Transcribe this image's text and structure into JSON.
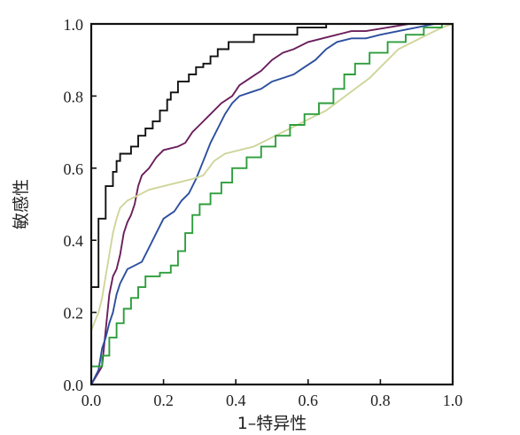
{
  "chart_data": {
    "type": "line",
    "title": "",
    "xlabel": "1–特异性",
    "ylabel": "敏感性",
    "xlim": [
      0,
      1
    ],
    "ylim": [
      0,
      1
    ],
    "xticks": [
      "0.0",
      "0.2",
      "0.4",
      "0.6",
      "0.8",
      "1.0"
    ],
    "yticks": [
      "0.0",
      "0.2",
      "0.4",
      "0.6",
      "0.8",
      "1.0"
    ],
    "grid": false,
    "legend": "none",
    "series": [
      {
        "color": "#111111",
        "points": [
          [
            0,
            0
          ],
          [
            0,
            0.27
          ],
          [
            0.02,
            0.27
          ],
          [
            0.02,
            0.46
          ],
          [
            0.04,
            0.46
          ],
          [
            0.04,
            0.55
          ],
          [
            0.06,
            0.55
          ],
          [
            0.06,
            0.59
          ],
          [
            0.07,
            0.59
          ],
          [
            0.07,
            0.62
          ],
          [
            0.08,
            0.62
          ],
          [
            0.08,
            0.64
          ],
          [
            0.11,
            0.64
          ],
          [
            0.11,
            0.66
          ],
          [
            0.13,
            0.66
          ],
          [
            0.13,
            0.69
          ],
          [
            0.15,
            0.69
          ],
          [
            0.15,
            0.71
          ],
          [
            0.17,
            0.71
          ],
          [
            0.17,
            0.73
          ],
          [
            0.19,
            0.73
          ],
          [
            0.19,
            0.76
          ],
          [
            0.21,
            0.76
          ],
          [
            0.21,
            0.79
          ],
          [
            0.22,
            0.79
          ],
          [
            0.22,
            0.81
          ],
          [
            0.24,
            0.81
          ],
          [
            0.24,
            0.84
          ],
          [
            0.27,
            0.84
          ],
          [
            0.27,
            0.86
          ],
          [
            0.29,
            0.86
          ],
          [
            0.29,
            0.88
          ],
          [
            0.31,
            0.88
          ],
          [
            0.31,
            0.89
          ],
          [
            0.33,
            0.89
          ],
          [
            0.33,
            0.91
          ],
          [
            0.35,
            0.91
          ],
          [
            0.35,
            0.93
          ],
          [
            0.38,
            0.93
          ],
          [
            0.38,
            0.95
          ],
          [
            0.45,
            0.95
          ],
          [
            0.45,
            0.97
          ],
          [
            0.57,
            0.97
          ],
          [
            0.57,
            0.99
          ],
          [
            0.65,
            0.99
          ],
          [
            0.65,
            1.0
          ],
          [
            1.0,
            1.0
          ]
        ]
      },
      {
        "color": "#6a1f5c",
        "points": [
          [
            0,
            0
          ],
          [
            0.03,
            0.05
          ],
          [
            0.04,
            0.15
          ],
          [
            0.05,
            0.25
          ],
          [
            0.06,
            0.3
          ],
          [
            0.07,
            0.32
          ],
          [
            0.08,
            0.36
          ],
          [
            0.09,
            0.42
          ],
          [
            0.1,
            0.45
          ],
          [
            0.11,
            0.47
          ],
          [
            0.12,
            0.5
          ],
          [
            0.13,
            0.55
          ],
          [
            0.14,
            0.58
          ],
          [
            0.16,
            0.6
          ],
          [
            0.18,
            0.63
          ],
          [
            0.2,
            0.65
          ],
          [
            0.24,
            0.66
          ],
          [
            0.26,
            0.67
          ],
          [
            0.28,
            0.7
          ],
          [
            0.3,
            0.72
          ],
          [
            0.33,
            0.75
          ],
          [
            0.36,
            0.78
          ],
          [
            0.39,
            0.8
          ],
          [
            0.41,
            0.83
          ],
          [
            0.44,
            0.85
          ],
          [
            0.47,
            0.87
          ],
          [
            0.5,
            0.9
          ],
          [
            0.53,
            0.92
          ],
          [
            0.56,
            0.93
          ],
          [
            0.6,
            0.95
          ],
          [
            0.64,
            0.96
          ],
          [
            0.68,
            0.97
          ],
          [
            0.72,
            0.98
          ],
          [
            0.76,
            0.98
          ],
          [
            0.82,
            0.99
          ],
          [
            0.88,
            1.0
          ],
          [
            1.0,
            1.0
          ]
        ]
      },
      {
        "color": "#2c4f9e",
        "points": [
          [
            0,
            0
          ],
          [
            0.02,
            0.04
          ],
          [
            0.03,
            0.1
          ],
          [
            0.04,
            0.13
          ],
          [
            0.05,
            0.17
          ],
          [
            0.06,
            0.2
          ],
          [
            0.07,
            0.25
          ],
          [
            0.08,
            0.28
          ],
          [
            0.09,
            0.3
          ],
          [
            0.1,
            0.32
          ],
          [
            0.12,
            0.33
          ],
          [
            0.14,
            0.34
          ],
          [
            0.16,
            0.38
          ],
          [
            0.18,
            0.42
          ],
          [
            0.2,
            0.46
          ],
          [
            0.23,
            0.48
          ],
          [
            0.25,
            0.51
          ],
          [
            0.27,
            0.53
          ],
          [
            0.29,
            0.57
          ],
          [
            0.31,
            0.62
          ],
          [
            0.33,
            0.67
          ],
          [
            0.35,
            0.71
          ],
          [
            0.37,
            0.75
          ],
          [
            0.39,
            0.78
          ],
          [
            0.41,
            0.8
          ],
          [
            0.44,
            0.81
          ],
          [
            0.47,
            0.82
          ],
          [
            0.5,
            0.84
          ],
          [
            0.53,
            0.85
          ],
          [
            0.56,
            0.86
          ],
          [
            0.59,
            0.88
          ],
          [
            0.62,
            0.9
          ],
          [
            0.65,
            0.93
          ],
          [
            0.68,
            0.95
          ],
          [
            0.72,
            0.96
          ],
          [
            0.76,
            0.96
          ],
          [
            0.8,
            0.97
          ],
          [
            0.85,
            0.98
          ],
          [
            0.9,
            0.99
          ],
          [
            0.95,
            1.0
          ],
          [
            1.0,
            1.0
          ]
        ]
      },
      {
        "color": "#cfd59a",
        "points": [
          [
            0,
            0
          ],
          [
            0,
            0.15
          ],
          [
            0.02,
            0.2
          ],
          [
            0.03,
            0.24
          ],
          [
            0.04,
            0.3
          ],
          [
            0.05,
            0.36
          ],
          [
            0.06,
            0.42
          ],
          [
            0.07,
            0.46
          ],
          [
            0.08,
            0.49
          ],
          [
            0.1,
            0.51
          ],
          [
            0.12,
            0.52
          ],
          [
            0.14,
            0.53
          ],
          [
            0.16,
            0.54
          ],
          [
            0.2,
            0.55
          ],
          [
            0.24,
            0.56
          ],
          [
            0.28,
            0.57
          ],
          [
            0.31,
            0.58
          ],
          [
            0.34,
            0.62
          ],
          [
            0.37,
            0.64
          ],
          [
            0.41,
            0.65
          ],
          [
            0.45,
            0.66
          ],
          [
            0.49,
            0.68
          ],
          [
            0.53,
            0.7
          ],
          [
            0.57,
            0.72
          ],
          [
            0.61,
            0.74
          ],
          [
            0.65,
            0.76
          ],
          [
            0.69,
            0.79
          ],
          [
            0.73,
            0.82
          ],
          [
            0.77,
            0.85
          ],
          [
            0.81,
            0.89
          ],
          [
            0.85,
            0.93
          ],
          [
            0.89,
            0.95
          ],
          [
            0.93,
            0.97
          ],
          [
            0.97,
            0.99
          ],
          [
            1.0,
            1.0
          ]
        ]
      },
      {
        "color": "#2e9e3c",
        "points": [
          [
            0,
            0
          ],
          [
            0,
            0.05
          ],
          [
            0.03,
            0.05
          ],
          [
            0.03,
            0.08
          ],
          [
            0.05,
            0.08
          ],
          [
            0.05,
            0.13
          ],
          [
            0.07,
            0.13
          ],
          [
            0.07,
            0.17
          ],
          [
            0.09,
            0.17
          ],
          [
            0.09,
            0.21
          ],
          [
            0.11,
            0.21
          ],
          [
            0.11,
            0.24
          ],
          [
            0.13,
            0.24
          ],
          [
            0.13,
            0.27
          ],
          [
            0.15,
            0.27
          ],
          [
            0.15,
            0.3
          ],
          [
            0.19,
            0.3
          ],
          [
            0.19,
            0.31
          ],
          [
            0.22,
            0.31
          ],
          [
            0.22,
            0.33
          ],
          [
            0.24,
            0.33
          ],
          [
            0.24,
            0.37
          ],
          [
            0.26,
            0.37
          ],
          [
            0.26,
            0.42
          ],
          [
            0.28,
            0.42
          ],
          [
            0.28,
            0.47
          ],
          [
            0.3,
            0.47
          ],
          [
            0.3,
            0.5
          ],
          [
            0.33,
            0.5
          ],
          [
            0.33,
            0.53
          ],
          [
            0.36,
            0.53
          ],
          [
            0.36,
            0.56
          ],
          [
            0.39,
            0.56
          ],
          [
            0.39,
            0.6
          ],
          [
            0.43,
            0.6
          ],
          [
            0.43,
            0.63
          ],
          [
            0.47,
            0.63
          ],
          [
            0.47,
            0.66
          ],
          [
            0.51,
            0.66
          ],
          [
            0.51,
            0.69
          ],
          [
            0.55,
            0.69
          ],
          [
            0.55,
            0.72
          ],
          [
            0.59,
            0.72
          ],
          [
            0.59,
            0.75
          ],
          [
            0.63,
            0.75
          ],
          [
            0.63,
            0.78
          ],
          [
            0.67,
            0.78
          ],
          [
            0.67,
            0.82
          ],
          [
            0.7,
            0.82
          ],
          [
            0.7,
            0.86
          ],
          [
            0.73,
            0.86
          ],
          [
            0.73,
            0.89
          ],
          [
            0.77,
            0.89
          ],
          [
            0.77,
            0.92
          ],
          [
            0.82,
            0.92
          ],
          [
            0.82,
            0.95
          ],
          [
            0.87,
            0.95
          ],
          [
            0.87,
            0.97
          ],
          [
            0.92,
            0.97
          ],
          [
            0.92,
            0.99
          ],
          [
            0.97,
            0.99
          ],
          [
            0.97,
            1.0
          ],
          [
            1.0,
            1.0
          ]
        ]
      }
    ]
  }
}
